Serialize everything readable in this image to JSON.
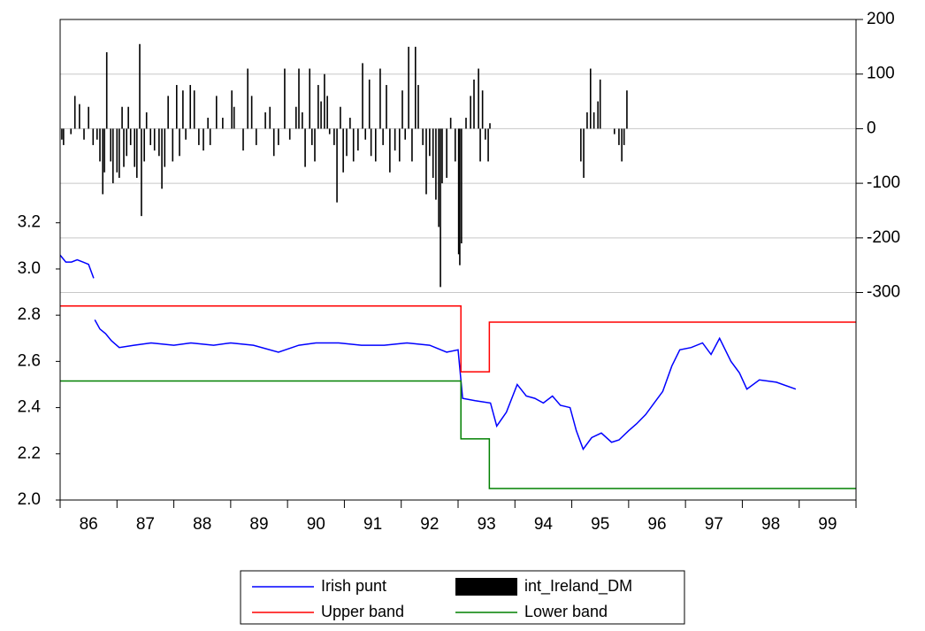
{
  "chart_data": {
    "type": "line",
    "xlim": [
      1986,
      2000
    ],
    "xticks": [
      1986,
      1987,
      1988,
      1989,
      1990,
      1991,
      1992,
      1993,
      1994,
      1995,
      1996,
      1997,
      1998,
      1999,
      2000
    ],
    "xtick_labels": [
      {
        "value": 1986.5,
        "label": "86"
      },
      {
        "value": 1987.5,
        "label": "87"
      },
      {
        "value": 1988.5,
        "label": "88"
      },
      {
        "value": 1989.5,
        "label": "89"
      },
      {
        "value": 1990.5,
        "label": "90"
      },
      {
        "value": 1991.5,
        "label": "91"
      },
      {
        "value": 1992.5,
        "label": "92"
      },
      {
        "value": 1993.5,
        "label": "93"
      },
      {
        "value": 1994.5,
        "label": "94"
      },
      {
        "value": 1995.5,
        "label": "95"
      },
      {
        "value": 1996.5,
        "label": "96"
      },
      {
        "value": 1997.5,
        "label": "97"
      },
      {
        "value": 1998.5,
        "label": "98"
      },
      {
        "value": 1999.5,
        "label": "99"
      }
    ],
    "ylim": [
      2.0,
      4.08
    ],
    "yticks": [
      {
        "value": 2.0,
        "label": "2.0"
      },
      2.2,
      2.4,
      2.6,
      2.8,
      {
        "value": 3.0,
        "label": "3.0"
      },
      3.2
    ],
    "y2lim": [
      -680,
      200
    ],
    "y2ticks": [
      -300,
      -200,
      -100,
      0,
      100,
      200
    ],
    "grid": true,
    "legend": "bottom",
    "series": [
      {
        "name": "Irish punt",
        "color": "#0000ff",
        "type": "line",
        "x": [
          1986.0,
          1986.1,
          1986.2,
          1986.3,
          1986.4,
          1986.5,
          1986.59,
          1986.6,
          1986.61,
          1986.7,
          1986.8,
          1986.9,
          1987.04,
          1987.3,
          1987.6,
          1988.0,
          1988.3,
          1988.7,
          1989.0,
          1989.4,
          1989.84,
          1990.2,
          1990.5,
          1990.9,
          1991.3,
          1991.7,
          1992.1,
          1992.5,
          1992.8,
          1993.0,
          1993.08,
          1993.3,
          1993.57,
          1993.68,
          1993.85,
          1994.04,
          1994.2,
          1994.35,
          1994.5,
          1994.66,
          1994.8,
          1994.97,
          1995.08,
          1995.2,
          1995.35,
          1995.52,
          1995.7,
          1995.83,
          1996.0,
          1996.14,
          1996.3,
          1996.45,
          1996.6,
          1996.76,
          1996.9,
          1997.1,
          1997.3,
          1997.45,
          1997.6,
          1997.8,
          1997.95,
          1998.08,
          1998.3,
          1998.6,
          1998.94
        ],
        "values": [
          3.06,
          3.03,
          3.03,
          3.04,
          3.03,
          3.02,
          2.96,
          null,
          2.78,
          2.74,
          2.72,
          2.69,
          2.66,
          2.67,
          2.68,
          2.67,
          2.68,
          2.67,
          2.68,
          2.67,
          2.64,
          2.67,
          2.68,
          2.68,
          2.67,
          2.67,
          2.68,
          2.67,
          2.64,
          2.65,
          2.44,
          2.43,
          2.42,
          2.32,
          2.38,
          2.5,
          2.45,
          2.44,
          2.42,
          2.45,
          2.41,
          2.4,
          2.3,
          2.22,
          2.27,
          2.29,
          2.25,
          2.26,
          2.3,
          2.33,
          2.37,
          2.42,
          2.47,
          2.58,
          2.65,
          2.66,
          2.68,
          2.63,
          2.7,
          2.6,
          2.55,
          2.48,
          2.52,
          2.51,
          2.48
        ]
      },
      {
        "name": "int_Ireland_DM",
        "color": "#000000",
        "type": "bar",
        "axis": "y2",
        "x": [
          1986.03,
          1986.06,
          1986.19,
          1986.26,
          1986.34,
          1986.42,
          1986.5,
          1986.58,
          1986.65,
          1986.7,
          1986.75,
          1986.78,
          1986.82,
          1986.89,
          1986.93,
          1987.0,
          1987.04,
          1987.09,
          1987.12,
          1987.17,
          1987.2,
          1987.24,
          1987.31,
          1987.35,
          1987.4,
          1987.43,
          1987.48,
          1987.52,
          1987.59,
          1987.66,
          1987.74,
          1987.79,
          1987.84,
          1987.9,
          1987.98,
          1988.05,
          1988.1,
          1988.16,
          1988.21,
          1988.29,
          1988.36,
          1988.44,
          1988.52,
          1988.6,
          1988.64,
          1988.75,
          1988.86,
          1989.02,
          1989.06,
          1989.22,
          1989.3,
          1989.37,
          1989.45,
          1989.61,
          1989.69,
          1989.76,
          1989.84,
          1989.95,
          1990.04,
          1990.15,
          1990.2,
          1990.26,
          1990.31,
          1990.39,
          1990.43,
          1990.48,
          1990.54,
          1990.59,
          1990.65,
          1990.7,
          1990.74,
          1990.82,
          1990.87,
          1990.93,
          1990.98,
          1991.04,
          1991.1,
          1991.16,
          1991.24,
          1991.32,
          1991.37,
          1991.44,
          1991.47,
          1991.55,
          1991.63,
          1991.68,
          1991.74,
          1991.8,
          1991.89,
          1991.97,
          1992.02,
          1992.07,
          1992.13,
          1992.19,
          1992.25,
          1992.3,
          1992.38,
          1992.44,
          1992.5,
          1992.56,
          1992.61,
          1992.66,
          1992.69,
          1992.72,
          1992.8,
          1992.87,
          1992.95,
          1993.01,
          1993.03,
          1993.06,
          1993.14,
          1993.22,
          1993.28,
          1993.36,
          1993.39,
          1993.43,
          1993.48,
          1993.53,
          1993.56,
          1995.16,
          1995.21,
          1995.27,
          1995.33,
          1995.39,
          1995.46,
          1995.5,
          1995.75,
          1995.83,
          1995.88,
          1995.92,
          1995.97
        ],
        "values": [
          -20,
          -30,
          -10,
          60,
          45,
          -20,
          40,
          -30,
          -20,
          -60,
          -120,
          -80,
          140,
          -60,
          -100,
          -80,
          -90,
          40,
          -70,
          -50,
          40,
          -30,
          -70,
          -90,
          155,
          -160,
          -60,
          30,
          -30,
          -40,
          -50,
          -110,
          -70,
          60,
          -60,
          80,
          -50,
          70,
          -20,
          80,
          70,
          -30,
          -40,
          20,
          -30,
          60,
          20,
          70,
          40,
          -40,
          110,
          60,
          -30,
          30,
          40,
          -50,
          -30,
          110,
          -20,
          40,
          110,
          30,
          -70,
          110,
          -30,
          -60,
          80,
          50,
          100,
          60,
          -10,
          -30,
          -135,
          40,
          -80,
          -50,
          20,
          -60,
          -40,
          120,
          -20,
          90,
          -50,
          -60,
          110,
          -30,
          80,
          -80,
          -40,
          -60,
          70,
          -20,
          150,
          -60,
          150,
          80,
          -30,
          -120,
          -50,
          -90,
          -130,
          -180,
          -290,
          -100,
          -90,
          20,
          -60,
          -230,
          -250,
          -210,
          20,
          60,
          90,
          110,
          -60,
          70,
          -20,
          -60,
          10,
          -60,
          -90,
          30,
          110,
          30,
          50,
          90,
          -10,
          -30,
          -60,
          -30,
          70
        ]
      },
      {
        "name": "Upper band",
        "color": "#ff0000",
        "type": "line",
        "x": [
          1986,
          1993.05,
          1993.05,
          1993.55,
          1993.55,
          2000
        ],
        "values": [
          2.84,
          2.84,
          2.555,
          2.555,
          2.77,
          2.77
        ]
      },
      {
        "name": "Lower band",
        "color": "#008000",
        "type": "line",
        "x": [
          1986,
          1993.05,
          1993.05,
          1993.55,
          1993.55,
          2000
        ],
        "values": [
          2.515,
          2.515,
          2.265,
          2.265,
          2.05,
          2.05
        ]
      }
    ]
  }
}
